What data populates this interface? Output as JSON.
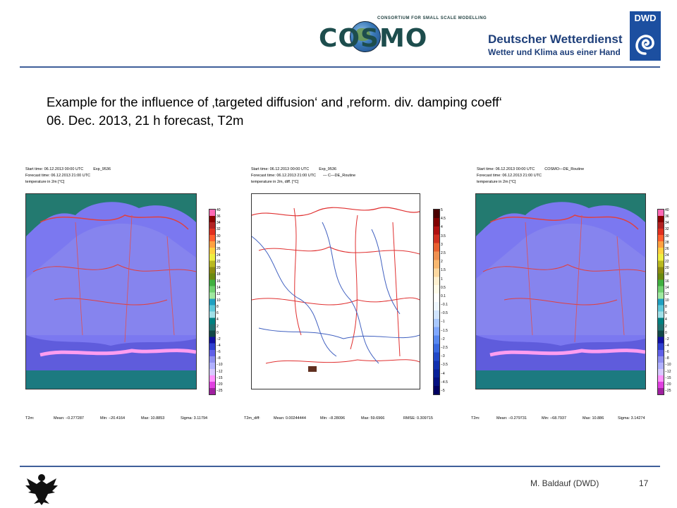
{
  "header": {
    "cosmo_tagline": "CONSORTIUM FOR SMALL SCALE MODELLING",
    "cosmo_word": "COSMO",
    "dwd_name": "Deutscher Wetterdienst",
    "dwd_subtitle": "Wetter und Klima aus einer Hand",
    "dwd_badge": "DWD"
  },
  "slide": {
    "title_line1": "Example for the influence of ‚targeted diffusion‘ and ‚reform. div. damping coeff‘",
    "title_line2": "06. Dec. 2013, 21 h forecast, T2m"
  },
  "panels": [
    {
      "start": "Start time:     06.12.2013 00:00 UTC",
      "exp": "Exp_9536",
      "forecast": "Forecast time: 06.12.2013 21:00 UTC",
      "variable": "temperature in 2m [°C]",
      "stats": [
        "T2m:",
        "Mean: −0.277287",
        "Min: −20.4164",
        "Max: 10.8853",
        "Sigma: 3.11794"
      ]
    },
    {
      "start": "Start time:     06.12.2013 00:00 UTC",
      "exp": "Exp_9536",
      "exp2": "— C—DE_Routine",
      "forecast": "Forecast time: 06.12.2013 21:00 UTC",
      "variable": "temperature in 2m, diff. [°C]",
      "stats": [
        "T2m_diff:",
        "Mean: 0.00244444",
        "Min: −8.28096",
        "Max: 59.6966",
        "RMSE: 0.309715"
      ]
    },
    {
      "start": "Start time:     06.12.2013 00:00 UTC",
      "exp": "COSMO—DE_Routine",
      "forecast": "Forecast time: 06.12.2013 21:00 UTC",
      "variable": "temperature in 2m [°C]",
      "stats": [
        "T2m:",
        "Mean: −0.279731",
        "Min: −68.7937",
        "Max: 10.886",
        "Sigma: 3.14274"
      ]
    }
  ],
  "colorbar_temp": {
    "labels": [
      "40",
      "36",
      "34",
      "32",
      "30",
      "28",
      "26",
      "24",
      "22",
      "20",
      "18",
      "16",
      "14",
      "12",
      "10",
      "8",
      "6",
      "4",
      "2",
      "0",
      "−2",
      "−4",
      "−6",
      "−8",
      "−10",
      "−12",
      "−15",
      "−20",
      "−25"
    ],
    "colors": [
      "#ff69b4",
      "#8b0000",
      "#b22222",
      "#e03020",
      "#ff6030",
      "#ffa040",
      "#ffd040",
      "#eeee40",
      "#b8b820",
      "#8c8c10",
      "#6a8a10",
      "#40b040",
      "#70d070",
      "#a0e8a0",
      "#20a0c0",
      "#60c8d8",
      "#a0e0e8",
      "#008080",
      "#207070",
      "#104848",
      "#1010a0",
      "#3040d0",
      "#6060e8",
      "#9090f0",
      "#b0b0ff",
      "#d8c8ff",
      "#ff90ff",
      "#e040e0",
      "#a020a0"
    ]
  },
  "colorbar_diff": {
    "labels": [
      "5",
      "4.5",
      "4",
      "3.5",
      "3",
      "2.5",
      "2",
      "1.5",
      "1",
      "0.5",
      "0.1",
      "−0.1",
      "−0.5",
      "−1",
      "−1.5",
      "−2",
      "−2.5",
      "−3",
      "−3.5",
      "−4",
      "−4.5",
      "−5"
    ],
    "colors": [
      "#4a0000",
      "#800000",
      "#b01010",
      "#d03020",
      "#e86030",
      "#f09050",
      "#f8b870",
      "#fcd8a0",
      "#fef0d0",
      "#fffbe8",
      "#ffffff",
      "#eef6ff",
      "#d0e4ff",
      "#a8c8ff",
      "#80a8ff",
      "#5888f0",
      "#3868e0",
      "#2048c8",
      "#1030b0",
      "#082098",
      "#041080",
      "#000060"
    ]
  },
  "footer": {
    "author": "M. Baldauf (DWD)",
    "page": "17"
  }
}
